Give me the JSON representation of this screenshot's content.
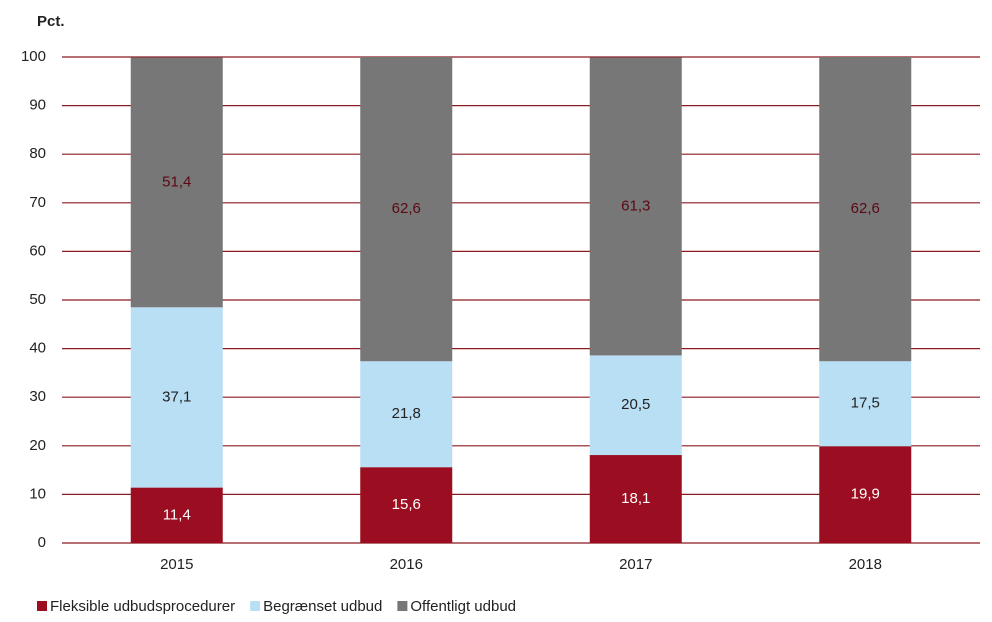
{
  "chart_data": {
    "type": "stacked_bar",
    "y_label": "Pct.",
    "categories": [
      "2015",
      "2016",
      "2017",
      "2018"
    ],
    "series": [
      {
        "name": "Fleksible udbudsprocedurer",
        "color": "#9b0d20",
        "label_color": "#ffffff",
        "values": [
          11.4,
          15.6,
          18.1,
          19.9
        ],
        "value_labels": [
          "11,4",
          "15,6",
          "18,1",
          "19,9"
        ]
      },
      {
        "name": "Begrænset udbud",
        "color": "#b9dff5",
        "label_color": "#222222",
        "values": [
          37.1,
          21.8,
          20.5,
          17.5
        ],
        "value_labels": [
          "37,1",
          "21,8",
          "20,5",
          "17,5"
        ]
      },
      {
        "name": "Offentligt udbud",
        "color": "#777777",
        "label_color": "#5a0a14",
        "values": [
          51.4,
          62.6,
          61.3,
          62.6
        ],
        "value_labels": [
          "51,4",
          "62,6",
          "61,3",
          "62,6"
        ]
      }
    ],
    "ylim": [
      0,
      100
    ],
    "yticks": [
      0,
      10,
      20,
      30,
      40,
      50,
      60,
      70,
      80,
      90,
      100
    ],
    "grid": true,
    "grid_color": "#8b1a22",
    "legend": "bottom"
  }
}
